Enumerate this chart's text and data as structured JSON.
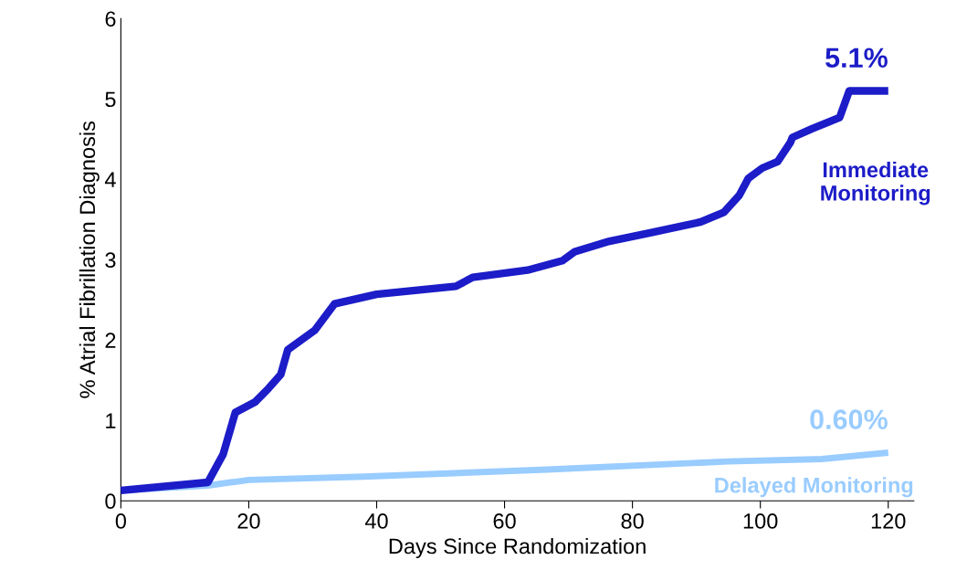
{
  "chart_data": {
    "type": "line",
    "xlabel": "Days Since Randomization",
    "ylabel": "% Atrial Fibrillation Diagnosis",
    "xlim": [
      0,
      124
    ],
    "xticks": [
      0,
      20,
      40,
      60,
      80,
      100,
      120
    ],
    "ylim": [
      0,
      6
    ],
    "yticks": [
      0,
      1,
      2,
      3,
      4,
      5,
      6
    ],
    "grid": false,
    "legend": false,
    "marker": "none",
    "line_style": "solid",
    "series": [
      {
        "name": "Immediate Monitoring",
        "color": "#1c1cc8",
        "x": [
          0,
          13.6,
          16,
          17.9,
          21,
          23.1,
          25,
          26.1,
          30.3,
          33.4,
          40,
          52.4,
          55,
          63.6,
          69.1,
          71,
          76.4,
          83.1,
          90.7,
          94.3,
          96.7,
          98.1,
          100.3,
          102.7,
          104.7,
          105,
          108.1,
          112.4,
          113.9,
          120
        ],
        "values": [
          0.13,
          0.23,
          0.58,
          1.1,
          1.23,
          1.4,
          1.57,
          1.88,
          2.12,
          2.45,
          2.57,
          2.67,
          2.78,
          2.87,
          2.99,
          3.1,
          3.23,
          3.34,
          3.47,
          3.59,
          3.8,
          4.01,
          4.14,
          4.22,
          4.46,
          4.52,
          4.63,
          4.77,
          5.1,
          5.1
        ]
      },
      {
        "name": "Delayed Monitoring",
        "color": "#99ccff",
        "x": [
          0,
          13.6,
          20,
          38,
          66.7,
          95,
          109.6,
          120
        ],
        "values": [
          0.13,
          0.19,
          0.26,
          0.3,
          0.39,
          0.49,
          0.52,
          0.6
        ]
      }
    ],
    "annotations": [
      {
        "text": "5.1%",
        "x": 120,
        "y": 5.1
      },
      {
        "text": "0.60%",
        "x": 120,
        "y": 0.6
      }
    ]
  }
}
